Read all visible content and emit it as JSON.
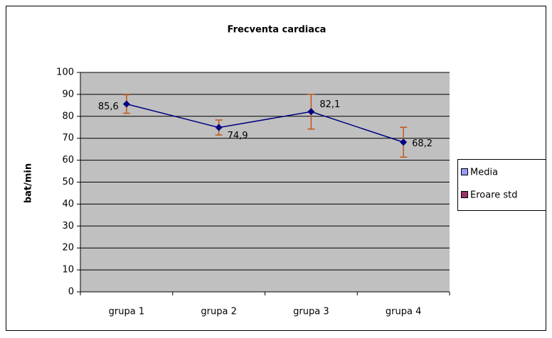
{
  "chart_data": {
    "type": "line",
    "title": "Frecventa cardiaca",
    "y_label": "bat/min",
    "categories": [
      "grupa 1",
      "grupa 2",
      "grupa 3",
      "grupa 4"
    ],
    "series": [
      {
        "name": "Media",
        "color": "#000080",
        "swatch": "#9999ff",
        "values": [
          85.6,
          74.9,
          82.1,
          68.2
        ],
        "value_labels": [
          "85,6",
          "74,9",
          "82,1",
          "68,2"
        ]
      },
      {
        "name": "Eroare std",
        "color": "#c0561a",
        "swatch": "#993366",
        "values": [
          4.2,
          3.4,
          7.9,
          6.8
        ]
      }
    ],
    "ylim": [
      0,
      100
    ],
    "yticks": [
      0,
      10,
      20,
      30,
      40,
      50,
      60,
      70,
      80,
      90,
      100
    ],
    "grid": true,
    "plot_background": "#c0c0c0"
  }
}
